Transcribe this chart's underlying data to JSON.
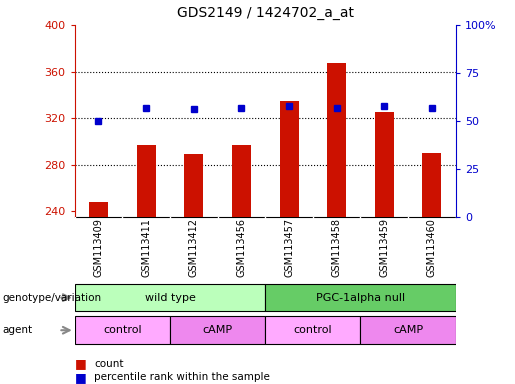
{
  "title": "GDS2149 / 1424702_a_at",
  "samples": [
    "GSM113409",
    "GSM113411",
    "GSM113412",
    "GSM113456",
    "GSM113457",
    "GSM113458",
    "GSM113459",
    "GSM113460"
  ],
  "counts": [
    248,
    297,
    289,
    297,
    335,
    367,
    325,
    290
  ],
  "percentiles": [
    50,
    57,
    56,
    57,
    58,
    57,
    58,
    57
  ],
  "ylim_left": [
    235,
    400
  ],
  "ylim_right": [
    0,
    100
  ],
  "yticks_left": [
    240,
    280,
    320,
    360,
    400
  ],
  "yticks_right": [
    0,
    25,
    50,
    75,
    100
  ],
  "ytick_labels_right": [
    "0",
    "25",
    "50",
    "75",
    "100%"
  ],
  "bar_color": "#cc1100",
  "dot_color": "#0000cc",
  "grid_color": "#000000",
  "bar_bottom": 235,
  "sample_bg": "#cccccc",
  "genotype_groups": [
    {
      "label": "wild type",
      "start": 0,
      "end": 4,
      "color": "#bbffbb"
    },
    {
      "label": "PGC-1alpha null",
      "start": 4,
      "end": 8,
      "color": "#66cc66"
    }
  ],
  "agent_groups": [
    {
      "label": "control",
      "start": 0,
      "end": 2,
      "color": "#ffaaff"
    },
    {
      "label": "cAMP",
      "start": 2,
      "end": 4,
      "color": "#ee88ee"
    },
    {
      "label": "control",
      "start": 4,
      "end": 6,
      "color": "#ffaaff"
    },
    {
      "label": "cAMP",
      "start": 6,
      "end": 8,
      "color": "#ee88ee"
    }
  ],
  "legend_items": [
    {
      "label": "count",
      "color": "#cc1100"
    },
    {
      "label": "percentile rank within the sample",
      "color": "#0000cc"
    }
  ],
  "background_color": "#ffffff",
  "tick_color_left": "#cc1100",
  "tick_color_right": "#0000cc",
  "genotype_label": "genotype/variation",
  "agent_label": "agent",
  "arrow_color": "#888888"
}
